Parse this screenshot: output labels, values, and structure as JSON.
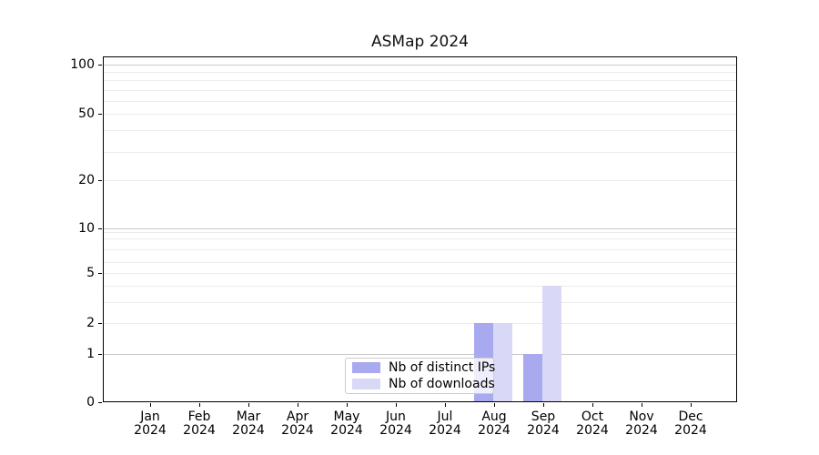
{
  "title": "ASMap 2024",
  "chart_data": {
    "type": "bar",
    "title": "ASMap 2024",
    "categories": [
      "Jan 2024",
      "Feb 2024",
      "Mar 2024",
      "Apr 2024",
      "May 2024",
      "Jun 2024",
      "Jul 2024",
      "Aug 2024",
      "Sep 2024",
      "Oct 2024",
      "Nov 2024",
      "Dec 2024"
    ],
    "x_tick_month_names": [
      "Jan",
      "Feb",
      "Mar",
      "Apr",
      "May",
      "Jun",
      "Jul",
      "Aug",
      "Sep",
      "Oct",
      "Nov",
      "Dec"
    ],
    "x_tick_year": "2024",
    "series": [
      {
        "name": "Nb of distinct IPs",
        "color": "#a9a9f0",
        "values": [
          0,
          0,
          0,
          0,
          0,
          0,
          0,
          2,
          1,
          0,
          0,
          0
        ]
      },
      {
        "name": "Nb of downloads",
        "color": "#d9d9f7",
        "values": [
          0,
          0,
          0,
          0,
          0,
          0,
          0,
          2,
          4,
          0,
          0,
          0
        ]
      }
    ],
    "yscale": "symlog",
    "ylim": [
      0,
      118
    ],
    "ytick_values": [
      100,
      50,
      20,
      10,
      5,
      2,
      1,
      0
    ],
    "ytick_labels": [
      "100",
      "50",
      "20",
      "10",
      "5",
      "2",
      "1",
      "0"
    ],
    "xlabel": "",
    "ylabel": "",
    "grid": "horizontal",
    "legend_position": "lower center",
    "major_gridline_color": "#c8c8c8",
    "minor_gridline_color": "#ececec"
  },
  "legend": {
    "items": [
      {
        "label": "Nb of distinct IPs",
        "color": "#a9a9f0"
      },
      {
        "label": "Nb of downloads",
        "color": "#d9d9f7"
      }
    ]
  }
}
